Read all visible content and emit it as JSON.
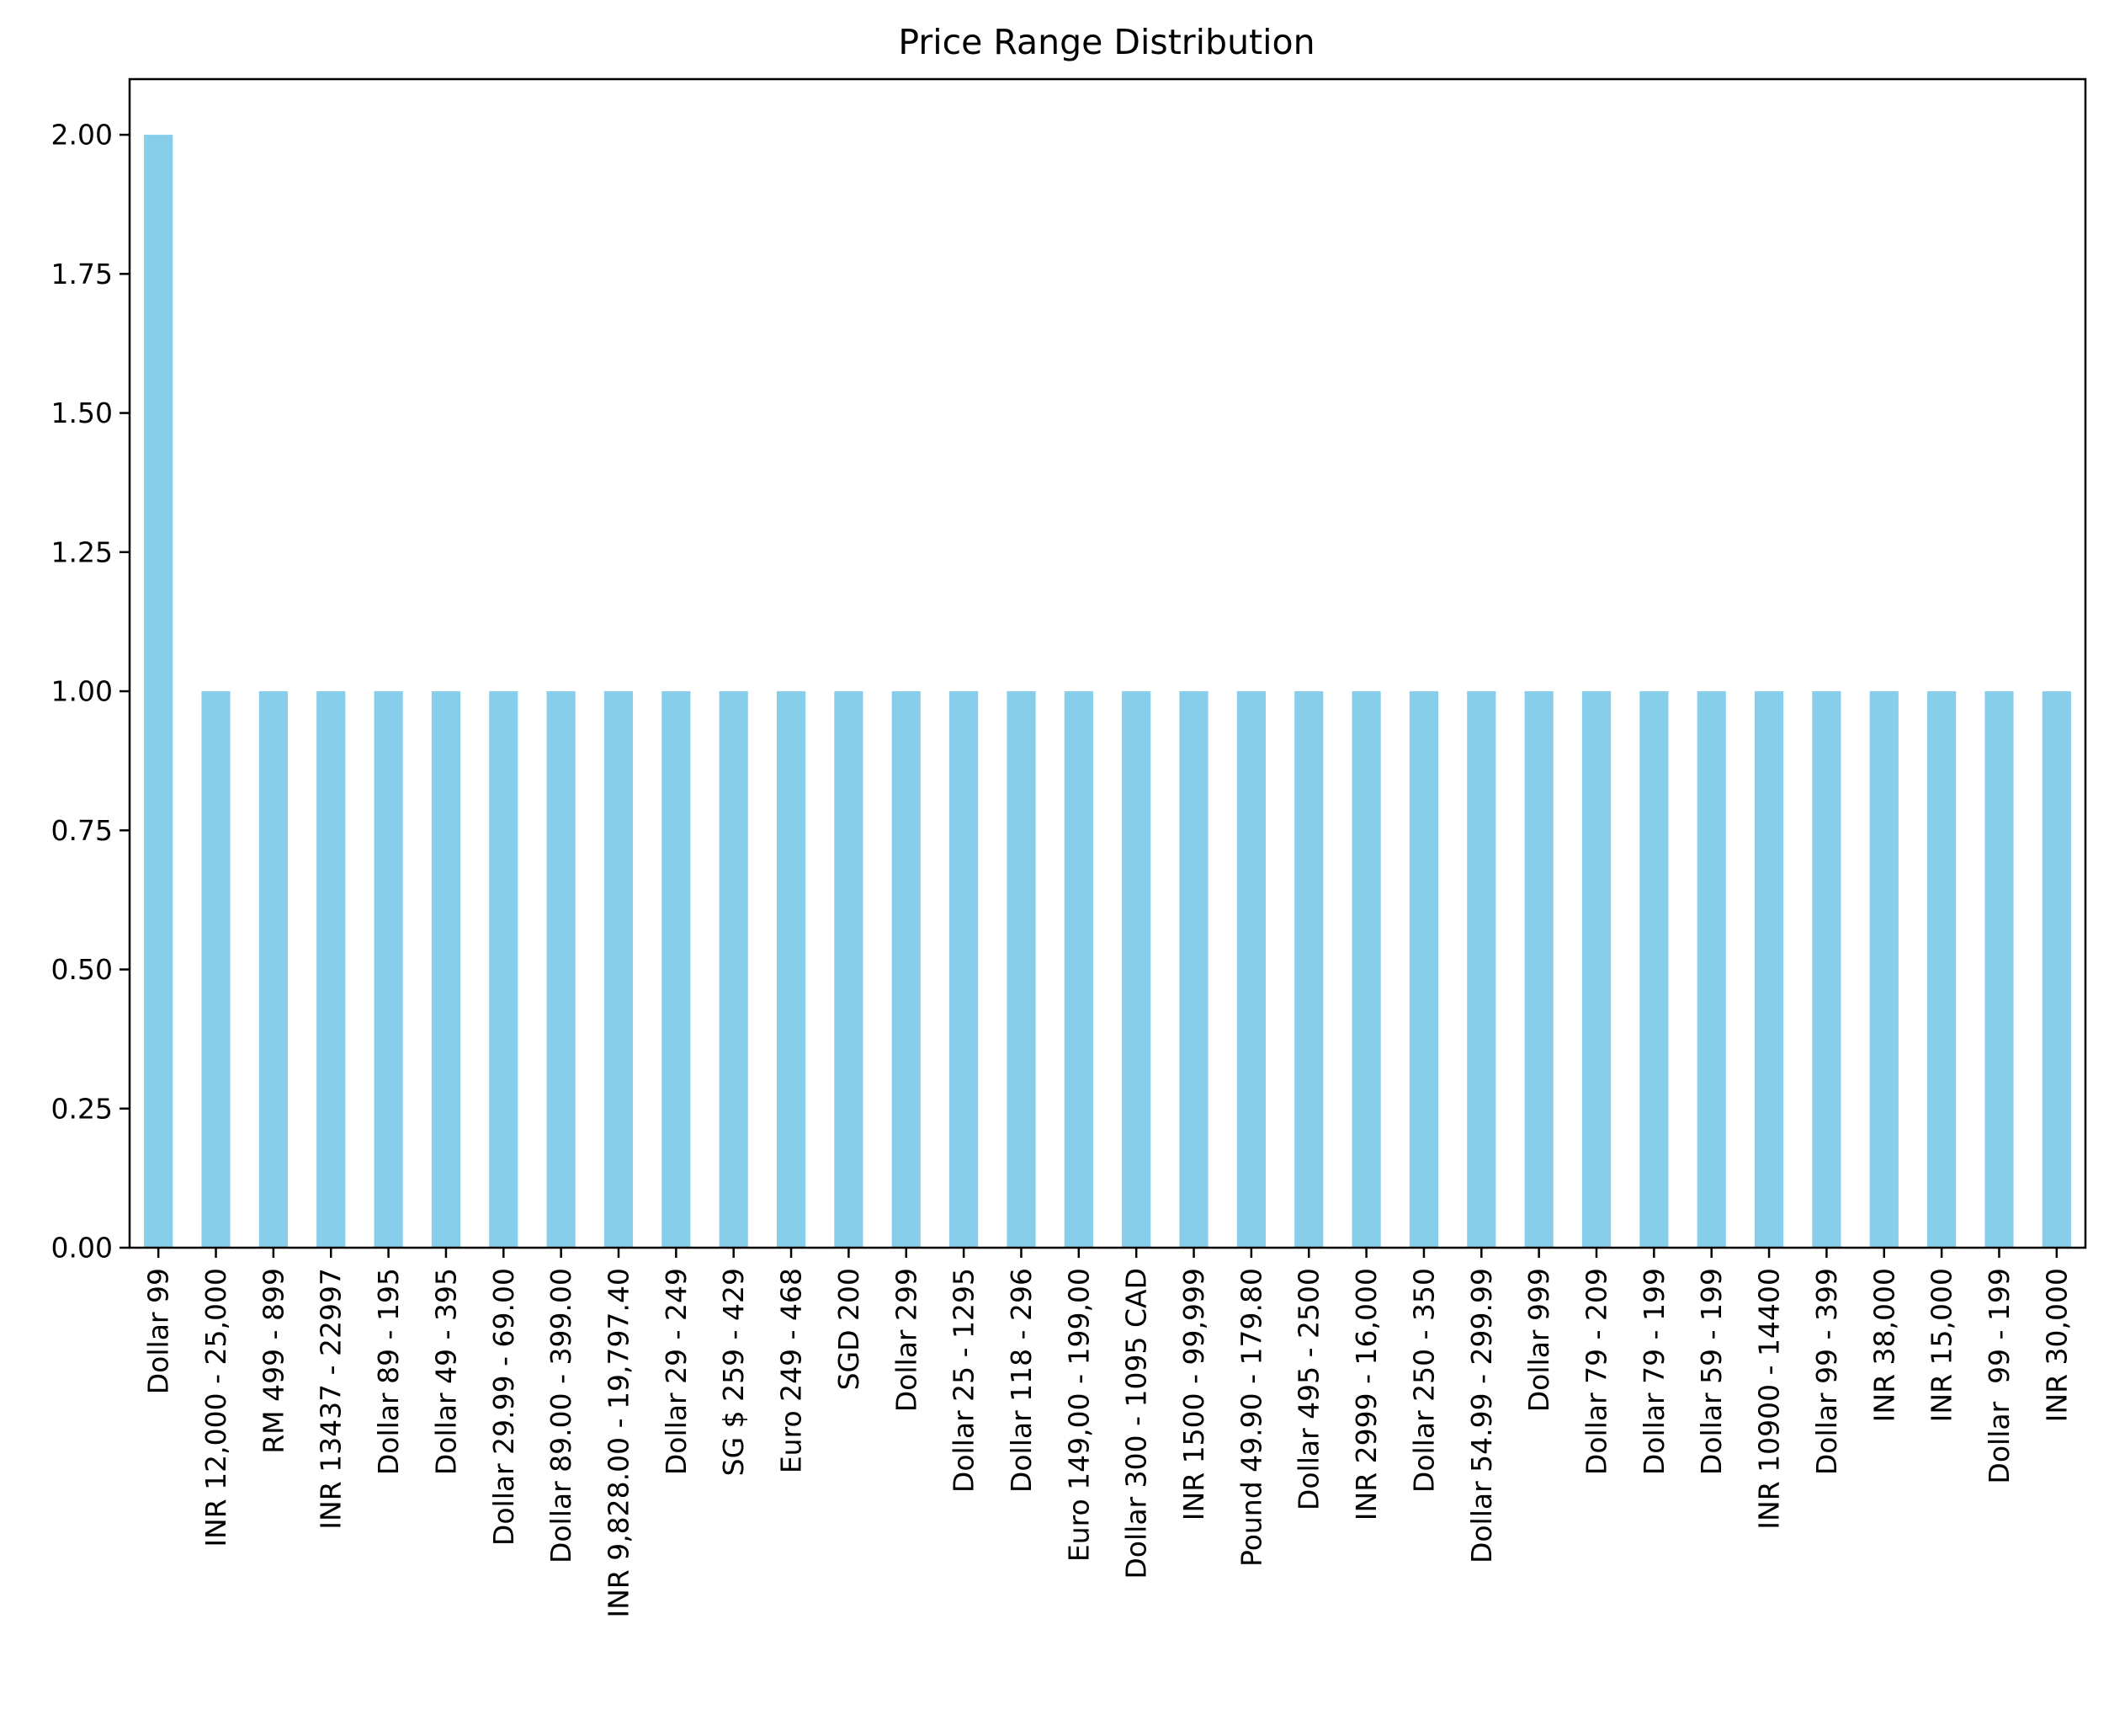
{
  "chart_data": {
    "type": "bar",
    "title": "Price Range Distribution",
    "xlabel": "",
    "ylabel": "",
    "ylim": [
      0,
      2.1
    ],
    "yticks": [
      "0.00",
      "0.25",
      "0.50",
      "0.75",
      "1.00",
      "1.25",
      "1.50",
      "1.75",
      "2.00"
    ],
    "bar_color": "#87CEEB",
    "grid": false,
    "categories": [
      "Dollar 99",
      "INR 12,000 - 25,000",
      "RM 499 - 899",
      "INR 13437 - 22997",
      "Dollar 89 - 195",
      "Dollar 49 - 395",
      "Dollar 29.99 - 69.00",
      "Dollar 89.00 - 399.00",
      "INR 9,828.00 - 19,797.40",
      "Dollar 29 - 249",
      "SG $ 259 - 429",
      "Euro 249 - 468",
      "SGD 200",
      "Dollar 299",
      "Dollar 25 - 1295",
      "Dollar 118 - 296",
      "Euro 149,00 - 199,00",
      "Dollar 300 - 1095 CAD",
      "INR 1500 - 99,999",
      "Pound 49.90 - 179.80",
      "Dollar 495 - 2500",
      "INR 2999 - 16,000",
      "Dollar 250 - 350",
      "Dollar 54.99 - 299.99",
      "Dollar 999",
      "Dollar 79 - 209",
      "Dollar 79 - 199",
      "Dollar 59 - 199",
      "INR 10900 - 14400",
      "Dollar 99 - 399",
      "INR 38,000",
      "INR 15,000",
      "Dollar  99 - 199",
      "INR 30,000"
    ],
    "values": [
      2,
      1,
      1,
      1,
      1,
      1,
      1,
      1,
      1,
      1,
      1,
      1,
      1,
      1,
      1,
      1,
      1,
      1,
      1,
      1,
      1,
      1,
      1,
      1,
      1,
      1,
      1,
      1,
      1,
      1,
      1,
      1,
      1,
      1
    ]
  }
}
